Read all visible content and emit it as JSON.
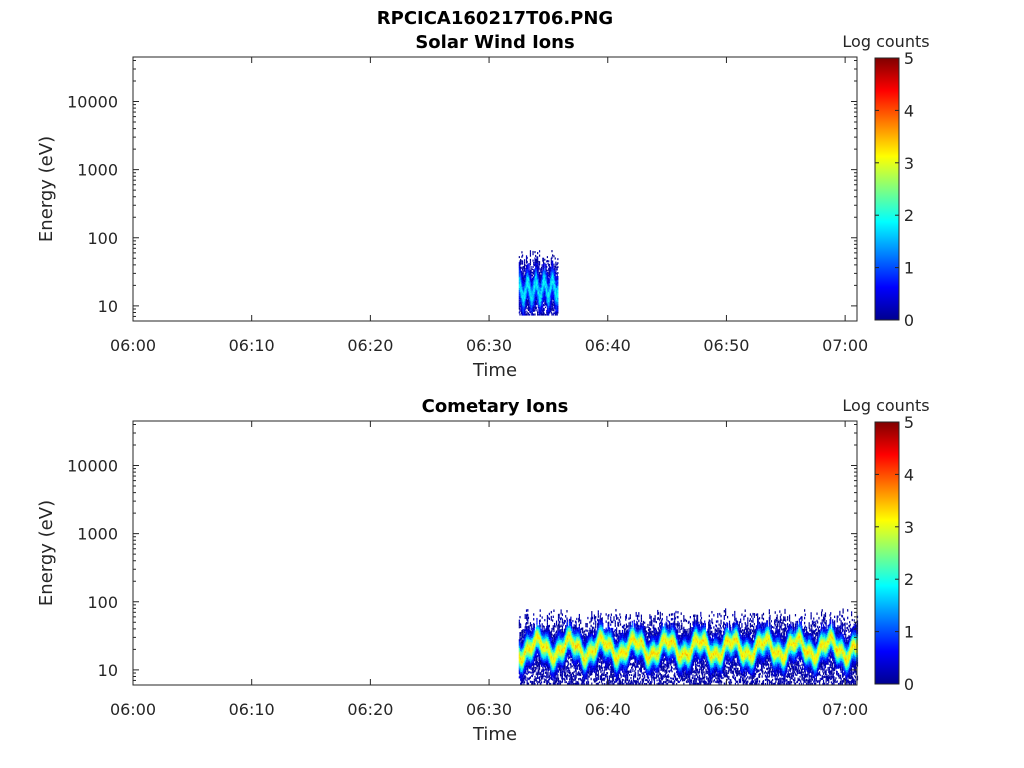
{
  "chart_data": [
    {
      "type": "heatmap",
      "suptitle": "RPCICA160217T06.PNG",
      "title": "Solar Wind Ions",
      "xlabel": "Time",
      "ylabel": "Energy (eV)",
      "xlim": [
        "06:00",
        "07:01"
      ],
      "ylim": [
        6,
        45000
      ],
      "yscale": "log",
      "xticks": [
        "06:00",
        "06:10",
        "06:20",
        "06:30",
        "06:40",
        "06:50",
        "07:00"
      ],
      "yticks": [
        {
          "value": 10,
          "label": "10"
        },
        {
          "value": 100,
          "label": "100"
        },
        {
          "value": 1000,
          "label": "1000"
        },
        {
          "value": 10000,
          "label": "10000"
        }
      ],
      "colorbar": {
        "label": "Log counts",
        "min": 0,
        "max": 5,
        "ticks": [
          "0",
          "1",
          "2",
          "3",
          "4",
          "5"
        ],
        "colormap": "jet"
      },
      "data_start": "06:32.5",
      "data_end": "06:35.8",
      "energy_band": {
        "center_start": 16,
        "center_end": 18,
        "peak_log_counts": 1.8,
        "max_energy_reached": 70
      }
    },
    {
      "type": "heatmap",
      "title": "Cometary Ions",
      "xlabel": "Time",
      "ylabel": "Energy (eV)",
      "xlim": [
        "06:00",
        "07:01"
      ],
      "ylim": [
        6,
        45000
      ],
      "yscale": "log",
      "xticks": [
        "06:00",
        "06:10",
        "06:20",
        "06:30",
        "06:40",
        "06:50",
        "07:00"
      ],
      "yticks": [
        {
          "value": 10,
          "label": "10"
        },
        {
          "value": 100,
          "label": "100"
        },
        {
          "value": 1000,
          "label": "1000"
        },
        {
          "value": 10000,
          "label": "10000"
        }
      ],
      "colorbar": {
        "label": "Log counts",
        "min": 0,
        "max": 5,
        "ticks": [
          "0",
          "1",
          "2",
          "3",
          "4",
          "5"
        ],
        "colormap": "jet"
      },
      "data_start": "06:32.5",
      "data_end": "07:01",
      "energy_band": {
        "center": 20,
        "peak_log_counts": 3.2,
        "max_energy_reached": 80
      }
    }
  ]
}
